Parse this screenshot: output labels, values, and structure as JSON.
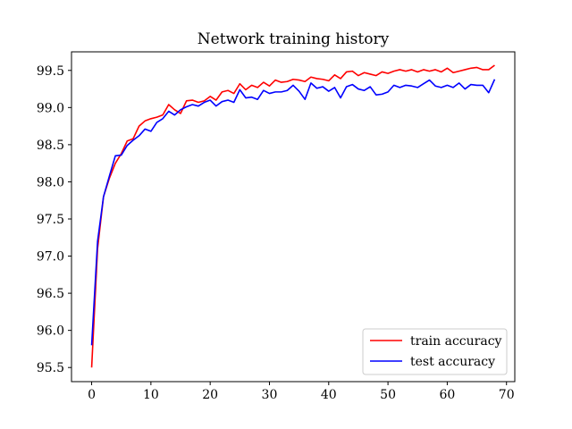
{
  "chart_data": {
    "type": "line",
    "title": "Network training history",
    "xlabel": "",
    "ylabel": "",
    "xlim": [
      -3.4,
      71.4
    ],
    "ylim": [
      95.31,
      99.75
    ],
    "xticks": [
      0,
      10,
      20,
      30,
      40,
      50,
      60,
      70
    ],
    "yticks": [
      95.5,
      96.0,
      96.5,
      97.0,
      97.5,
      98.0,
      98.5,
      99.0,
      99.5
    ],
    "ytick_labels": [
      "95.5",
      "96.0",
      "96.5",
      "97.0",
      "97.5",
      "98.0",
      "98.5",
      "99.0",
      "99.5"
    ],
    "grid": false,
    "legend": "lower-right",
    "series": [
      {
        "name": "train accuracy",
        "color": "#ff0000",
        "x": [
          0,
          1,
          2,
          3,
          4,
          5,
          6,
          7,
          8,
          9,
          10,
          11,
          12,
          13,
          14,
          15,
          16,
          17,
          18,
          19,
          20,
          21,
          22,
          23,
          24,
          25,
          26,
          27,
          28,
          29,
          30,
          31,
          32,
          33,
          34,
          35,
          36,
          37,
          38,
          39,
          40,
          41,
          42,
          43,
          44,
          45,
          46,
          47,
          48,
          49,
          50,
          51,
          52,
          53,
          54,
          55,
          56,
          57,
          58,
          59,
          60,
          61,
          62,
          63,
          64,
          65,
          66,
          67,
          68
        ],
        "values": [
          95.5,
          97.1,
          97.8,
          98.05,
          98.25,
          98.38,
          98.55,
          98.58,
          98.75,
          98.82,
          98.85,
          98.87,
          98.9,
          99.04,
          98.97,
          98.92,
          99.09,
          99.1,
          99.07,
          99.09,
          99.15,
          99.1,
          99.21,
          99.23,
          99.19,
          99.32,
          99.24,
          99.3,
          99.27,
          99.34,
          99.29,
          99.37,
          99.34,
          99.35,
          99.38,
          99.37,
          99.35,
          99.41,
          99.39,
          99.38,
          99.36,
          99.44,
          99.39,
          99.48,
          99.49,
          99.43,
          99.47,
          99.45,
          99.43,
          99.48,
          99.46,
          99.49,
          99.51,
          99.49,
          99.51,
          99.48,
          99.51,
          99.49,
          99.51,
          99.48,
          99.53,
          99.47,
          99.49,
          99.51,
          99.53,
          99.54,
          99.51,
          99.51,
          99.57
        ]
      },
      {
        "name": "test accuracy",
        "color": "#0000ff",
        "x": [
          0,
          1,
          2,
          3,
          4,
          5,
          6,
          7,
          8,
          9,
          10,
          11,
          12,
          13,
          14,
          15,
          16,
          17,
          18,
          19,
          20,
          21,
          22,
          23,
          24,
          25,
          26,
          27,
          28,
          29,
          30,
          31,
          32,
          33,
          34,
          35,
          36,
          37,
          38,
          39,
          40,
          41,
          42,
          43,
          44,
          45,
          46,
          47,
          48,
          49,
          50,
          51,
          52,
          53,
          54,
          55,
          56,
          57,
          58,
          59,
          60,
          61,
          62,
          63,
          64,
          65,
          66,
          67,
          68
        ],
        "values": [
          95.8,
          97.2,
          97.8,
          98.08,
          98.35,
          98.36,
          98.49,
          98.56,
          98.62,
          98.71,
          98.68,
          98.8,
          98.85,
          98.95,
          98.9,
          98.97,
          99.01,
          99.04,
          99.02,
          99.07,
          99.1,
          99.02,
          99.08,
          99.1,
          99.07,
          99.24,
          99.13,
          99.14,
          99.11,
          99.23,
          99.19,
          99.21,
          99.21,
          99.23,
          99.3,
          99.22,
          99.11,
          99.33,
          99.26,
          99.28,
          99.22,
          99.27,
          99.13,
          99.28,
          99.31,
          99.25,
          99.23,
          99.28,
          99.17,
          99.18,
          99.21,
          99.3,
          99.27,
          99.3,
          99.29,
          99.27,
          99.32,
          99.37,
          99.29,
          99.27,
          99.3,
          99.27,
          99.33,
          99.25,
          99.31,
          99.3,
          99.3,
          99.2,
          99.38
        ]
      }
    ]
  }
}
